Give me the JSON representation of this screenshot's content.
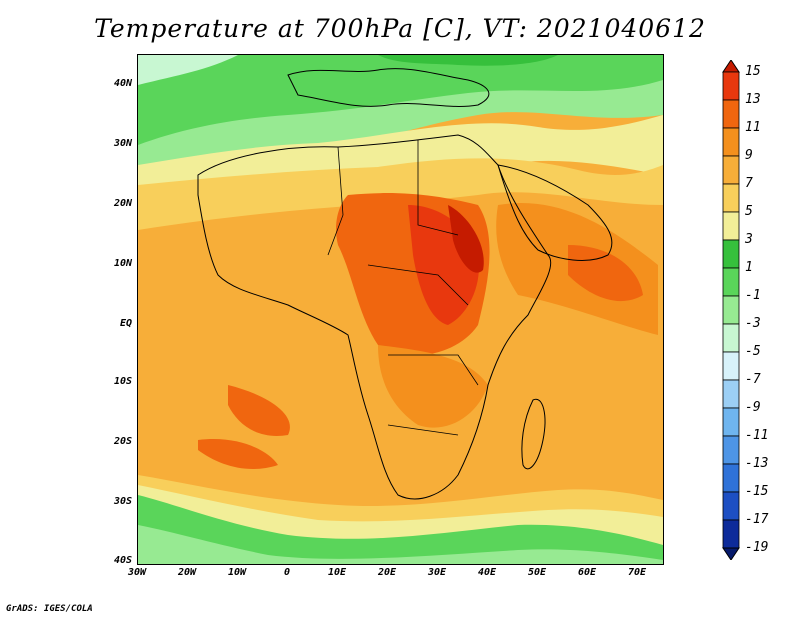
{
  "title": "Temperature at 700hPa [C], VT: 2021040612",
  "credit": "GrADS: IGES/COLA",
  "lat_labels": [
    "40N",
    "30N",
    "20N",
    "10N",
    "EQ",
    "10S",
    "20S",
    "30S",
    "40S"
  ],
  "lon_labels": [
    "30W",
    "20W",
    "10W",
    "0",
    "10E",
    "20E",
    "30E",
    "40E",
    "50E",
    "60E",
    "70E"
  ],
  "colorbar": {
    "labels": [
      "15",
      "13",
      "11",
      "9",
      "7",
      "5",
      "3",
      "1",
      "-1",
      "-3",
      "-5",
      "-7",
      "-9",
      "-11",
      "-13",
      "-15",
      "-17",
      "-19"
    ],
    "colors": [
      "#c51b00",
      "#e8380e",
      "#f0660f",
      "#f4901d",
      "#f7ae39",
      "#f8cf5b",
      "#f2ee98",
      "#36c03c",
      "#5ad55a",
      "#97ea92",
      "#c8f7d2",
      "#d8f2fa",
      "#9ccff5",
      "#6fb5ef",
      "#4e95e6",
      "#2f72d8",
      "#1d4fc3",
      "#0d2b9a",
      "#061a6b"
    ]
  },
  "field": {
    "variable": "Temperature at 700hPa",
    "units": "C",
    "lon_range": [
      -30,
      75
    ],
    "lat_range": [
      -40,
      45
    ]
  }
}
